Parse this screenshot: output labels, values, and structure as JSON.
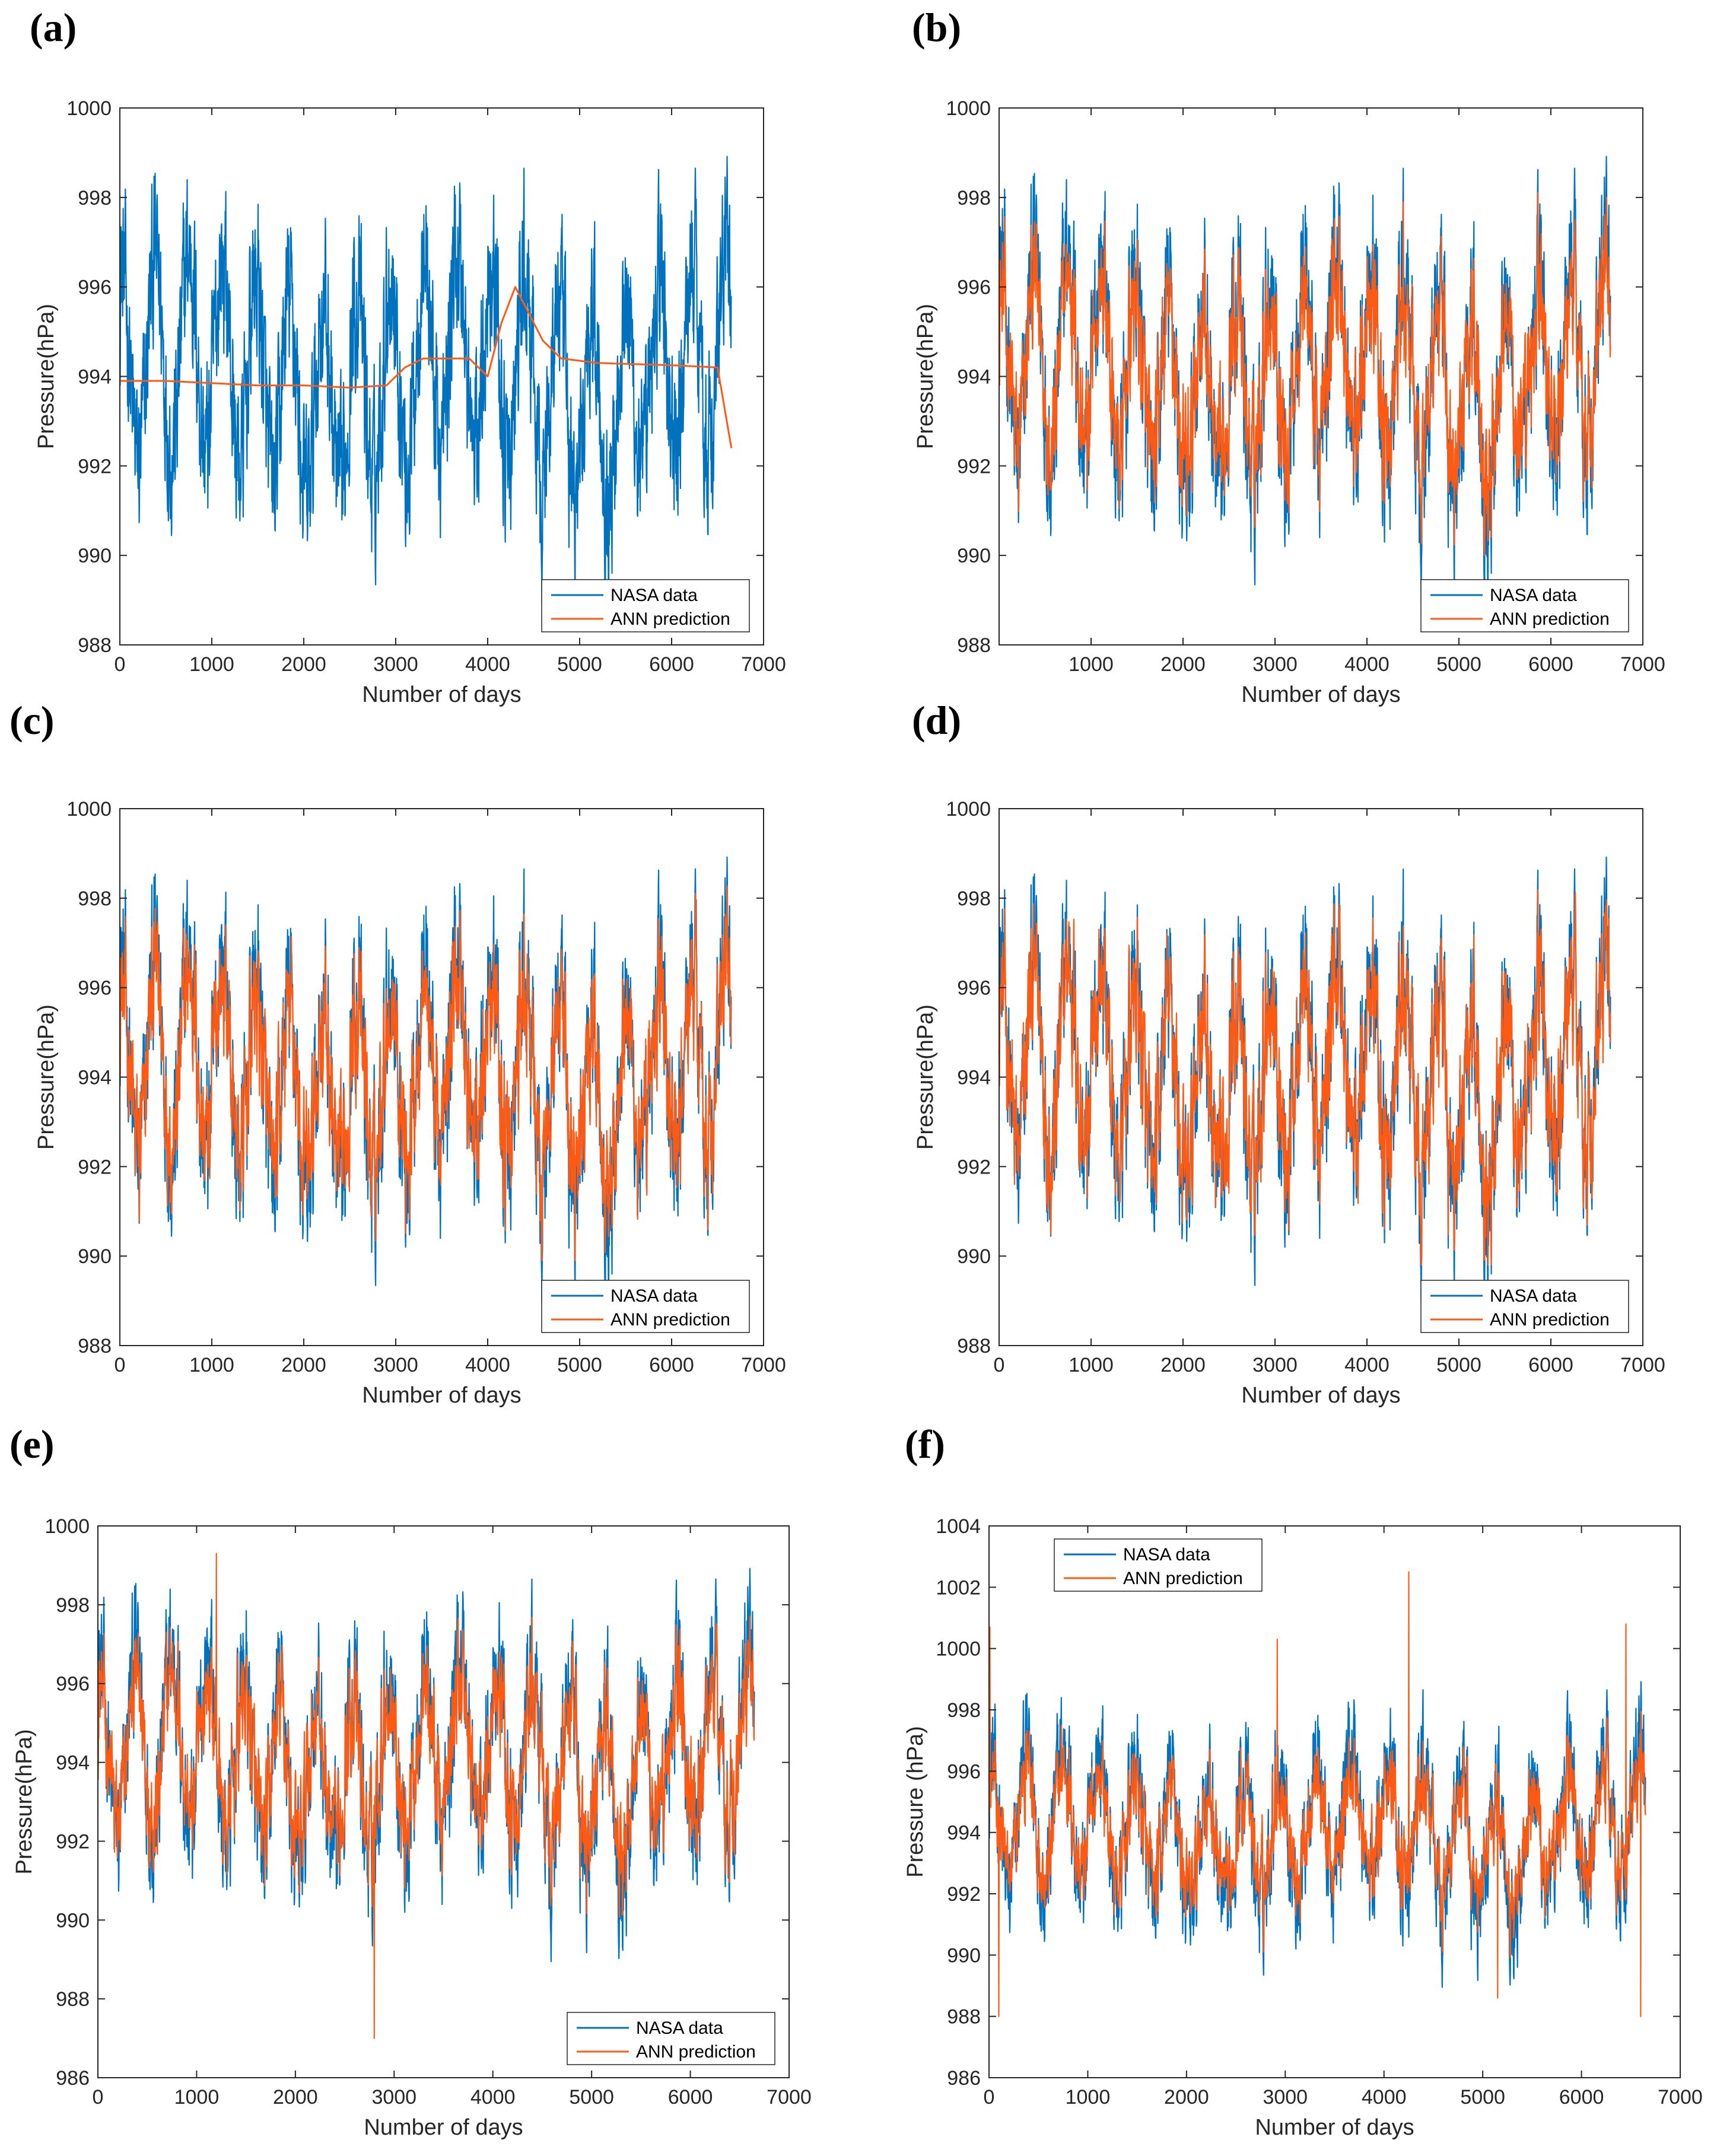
{
  "figure": {
    "colors": {
      "nasa": "#0072BD",
      "ann": "#FF5A14"
    },
    "panels": [
      {
        "label": "(a)"
      },
      {
        "label": "(b)"
      },
      {
        "label": "(c)"
      },
      {
        "label": "(d)"
      },
      {
        "label": "(e)"
      },
      {
        "label": "(f)"
      }
    ]
  },
  "chart_data": [
    {
      "type": "line",
      "panel": "(a)",
      "xlabel": "Number of days",
      "ylabel": "Pressure(hPa)",
      "xlim": [
        0,
        7000
      ],
      "ylim": [
        988,
        1000
      ],
      "xticks": [
        0,
        1000,
        2000,
        3000,
        4000,
        5000,
        6000,
        7000
      ],
      "yticks": [
        988,
        990,
        992,
        994,
        996,
        998,
        1000
      ],
      "legend": {
        "position": "bottom-right",
        "entries": [
          "NASA data",
          "ANN prediction"
        ]
      },
      "series": [
        {
          "name": "NASA data",
          "kind": "nasa",
          "n_days": 6650,
          "mean": 994.0,
          "amplitude": 2.2,
          "noise": 1.4,
          "min": 988.7,
          "max": 999.2
        },
        {
          "name": "ANN prediction",
          "kind": "ann_smooth",
          "x": [
            0,
            500,
            1000,
            1500,
            2000,
            2500,
            2900,
            3100,
            3300,
            3800,
            4000,
            4150,
            4300,
            4450,
            4600,
            4800,
            5200,
            6000,
            6500,
            6600,
            6650
          ],
          "y": [
            993.9,
            993.9,
            993.85,
            993.8,
            993.8,
            993.75,
            993.8,
            994.2,
            994.4,
            994.4,
            994.0,
            995.2,
            996.0,
            995.4,
            994.8,
            994.4,
            994.3,
            994.25,
            994.2,
            993.0,
            992.4
          ]
        }
      ]
    },
    {
      "type": "line",
      "panel": "(b)",
      "xlabel": "Number of days",
      "ylabel": "Pressure(hPa)",
      "xlim": [
        0,
        7000
      ],
      "ylim": [
        988,
        1000
      ],
      "xticks": [
        1000,
        2000,
        3000,
        4000,
        5000,
        6000,
        7000
      ],
      "yticks": [
        988,
        990,
        992,
        994,
        996,
        998,
        1000
      ],
      "legend": {
        "position": "bottom-right",
        "entries": [
          "NASA data",
          "ANN prediction"
        ]
      },
      "series": [
        {
          "name": "NASA data",
          "kind": "nasa",
          "n_days": 6650,
          "mean": 994.0,
          "amplitude": 2.2,
          "noise": 1.4,
          "min": 988.7,
          "max": 999.2
        },
        {
          "name": "ANN prediction",
          "kind": "ann_track",
          "fidelity": 0.8,
          "min": 990.0,
          "max": 998.5
        }
      ]
    },
    {
      "type": "line",
      "panel": "(c)",
      "xlabel": "Number of days",
      "ylabel": "Pressure(hPa)",
      "xlim": [
        0,
        7000
      ],
      "ylim": [
        988,
        1000
      ],
      "xticks": [
        0,
        1000,
        2000,
        3000,
        4000,
        5000,
        6000,
        7000
      ],
      "yticks": [
        988,
        990,
        992,
        994,
        996,
        998,
        1000
      ],
      "legend": {
        "position": "bottom-right",
        "entries": [
          "NASA data",
          "ANN prediction"
        ]
      },
      "series": [
        {
          "name": "NASA data",
          "kind": "nasa",
          "n_days": 6650,
          "mean": 994.0,
          "amplitude": 2.2,
          "noise": 1.4,
          "min": 988.7,
          "max": 999.2
        },
        {
          "name": "ANN prediction",
          "kind": "ann_track",
          "fidelity": 0.85,
          "min": 989.9,
          "max": 998.3
        }
      ]
    },
    {
      "type": "line",
      "panel": "(d)",
      "xlabel": "Number of days",
      "ylabel": "Pressure(hPa)",
      "xlim": [
        0,
        7000
      ],
      "ylim": [
        988,
        1000
      ],
      "xticks": [
        0,
        1000,
        2000,
        3000,
        4000,
        5000,
        6000,
        7000
      ],
      "yticks": [
        988,
        990,
        992,
        994,
        996,
        998,
        1000
      ],
      "legend": {
        "position": "bottom-right",
        "entries": [
          "NASA data",
          "ANN prediction"
        ]
      },
      "series": [
        {
          "name": "NASA data",
          "kind": "nasa",
          "n_days": 6650,
          "mean": 994.0,
          "amplitude": 2.2,
          "noise": 1.4,
          "min": 988.7,
          "max": 999.2
        },
        {
          "name": "ANN prediction",
          "kind": "ann_track",
          "fidelity": 0.9,
          "min": 989.8,
          "max": 998.5
        }
      ]
    },
    {
      "type": "line",
      "panel": "(e)",
      "xlabel": "Number of days",
      "ylabel": "Pressure(hPa)",
      "xlim": [
        0,
        7000
      ],
      "ylim": [
        986,
        1000
      ],
      "xticks": [
        0,
        1000,
        2000,
        3000,
        4000,
        5000,
        6000,
        7000
      ],
      "yticks": [
        986,
        988,
        990,
        992,
        994,
        996,
        998,
        1000
      ],
      "legend": {
        "position": "bottom-right",
        "entries": [
          "NASA data",
          "ANN prediction"
        ]
      },
      "series": [
        {
          "name": "NASA data",
          "kind": "nasa",
          "n_days": 6650,
          "mean": 994.0,
          "amplitude": 2.2,
          "noise": 1.4,
          "min": 988.7,
          "max": 999.2
        },
        {
          "name": "ANN prediction",
          "kind": "ann_track",
          "fidelity": 0.8,
          "min": 987.0,
          "max": 999.3,
          "spikes": [
            [
              2800,
              987.0
            ],
            [
              1200,
              999.3
            ]
          ]
        }
      ]
    },
    {
      "type": "line",
      "panel": "(f)",
      "xlabel": "Number of days",
      "ylabel": "Pressure (hPa)",
      "xlim": [
        0,
        7000
      ],
      "ylim": [
        986,
        1004
      ],
      "xticks": [
        0,
        1000,
        2000,
        3000,
        4000,
        5000,
        6000,
        7000
      ],
      "yticks": [
        986,
        988,
        990,
        992,
        994,
        996,
        998,
        1000,
        1002,
        1004
      ],
      "legend": {
        "position": "top-left",
        "entries": [
          "NASA data",
          "ANN prediction"
        ]
      },
      "series": [
        {
          "name": "NASA data",
          "kind": "nasa",
          "n_days": 6650,
          "mean": 994.0,
          "amplitude": 2.2,
          "noise": 1.4,
          "min": 988.7,
          "max": 999.2
        },
        {
          "name": "ANN prediction",
          "kind": "ann_track",
          "fidelity": 0.75,
          "min": 988.0,
          "max": 1002.5,
          "spikes": [
            [
              4250,
              1002.5
            ],
            [
              10,
              1000.7
            ],
            [
              2920,
              1000.3
            ],
            [
              6450,
              1000.8
            ],
            [
              100,
              988.0
            ],
            [
              6600,
              988.0
            ],
            [
              5150,
              988.6
            ]
          ]
        }
      ]
    }
  ]
}
